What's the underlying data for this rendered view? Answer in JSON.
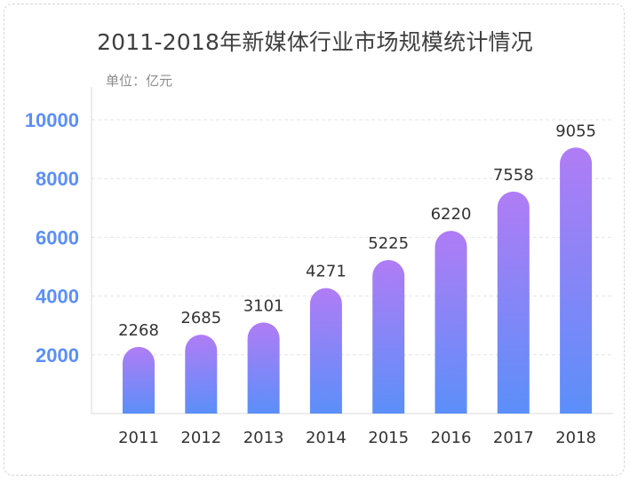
{
  "chart_data": {
    "type": "bar",
    "title": "2011-2018年新媒体行业市场规模统计情况",
    "unit_label": "单位：亿元",
    "categories": [
      "2011",
      "2012",
      "2013",
      "2014",
      "2015",
      "2016",
      "2017",
      "2018"
    ],
    "values": [
      2268,
      2685,
      3101,
      4271,
      5225,
      6220,
      7558,
      9055
    ],
    "data_labels": [
      "2268",
      "2685",
      "3101",
      "4271",
      "5225",
      "6220",
      "7558",
      "9055"
    ],
    "yticks": [
      2000,
      4000,
      6000,
      8000,
      10000
    ],
    "ytick_labels": [
      "2000",
      "4000",
      "6000",
      "8000",
      "10000"
    ],
    "ylim": [
      0,
      10000
    ],
    "grid": true,
    "legend": "none",
    "colors": {
      "bar_top": "#b07cf5",
      "bar_bottom": "#5b8ff9",
      "ytick": "#5b8ff9",
      "grid": "#e6e6e6"
    }
  }
}
